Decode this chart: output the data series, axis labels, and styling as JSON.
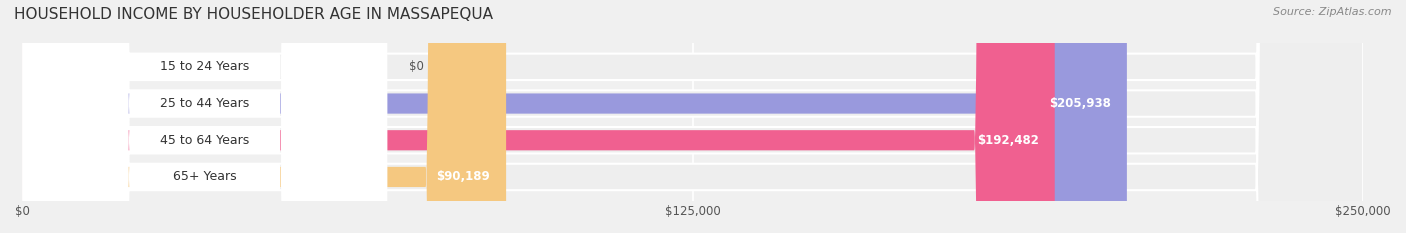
{
  "title": "HOUSEHOLD INCOME BY HOUSEHOLDER AGE IN MASSAPEQUA",
  "source": "Source: ZipAtlas.com",
  "categories": [
    "15 to 24 Years",
    "25 to 44 Years",
    "45 to 64 Years",
    "65+ Years"
  ],
  "values": [
    0,
    205938,
    192482,
    90189
  ],
  "max_value": 250000,
  "bar_colors": [
    "#7dd8d8",
    "#9999dd",
    "#f06090",
    "#f5c880"
  ],
  "bar_track_color": "#eeeeee",
  "background_color": "#f0f0f0",
  "label_values": [
    "$0",
    "$205,938",
    "$192,482",
    "$90,189"
  ],
  "xtick_labels": [
    "$0",
    "$125,000",
    "$250,000"
  ],
  "xtick_values": [
    0,
    125000,
    250000
  ],
  "title_fontsize": 11,
  "source_fontsize": 8,
  "label_fontsize": 9,
  "value_fontsize": 8.5
}
